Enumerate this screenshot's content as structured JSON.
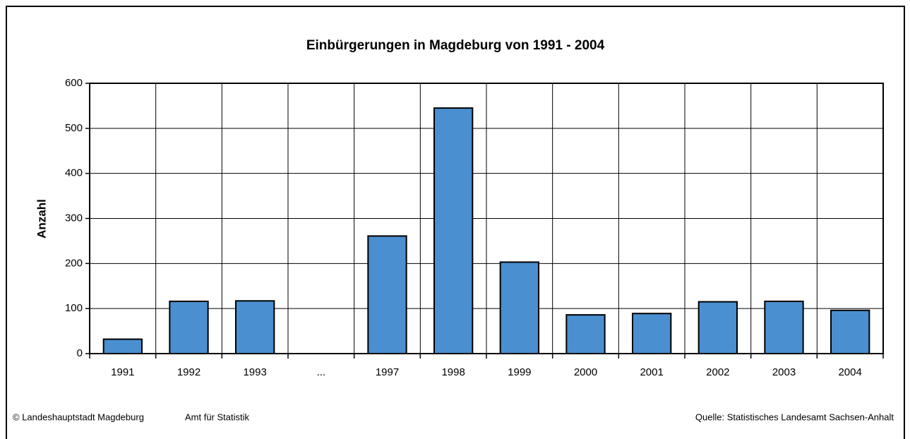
{
  "chart_data": {
    "type": "bar",
    "title": "Einbürgerungen in Magdeburg von 1991 - 2004",
    "y_label": "Anzahl",
    "categories": [
      "1991",
      "1992",
      "1993",
      "...",
      "1997",
      "1998",
      "1999",
      "2000",
      "2001",
      "2002",
      "2003",
      "2004"
    ],
    "values": [
      32,
      116,
      117,
      null,
      261,
      545,
      203,
      86,
      89,
      115,
      116,
      96
    ],
    "color": "#4a8fd0",
    "ylim": [
      0,
      600
    ],
    "yticks": [
      0,
      100,
      200,
      300,
      400,
      500,
      600
    ],
    "grid": true,
    "annotations": [
      "© Landeshauptstadt Magdeburg",
      "Amt für Statistik",
      "Quelle: Statistisches Landesamt Sachsen-Anhalt"
    ]
  }
}
